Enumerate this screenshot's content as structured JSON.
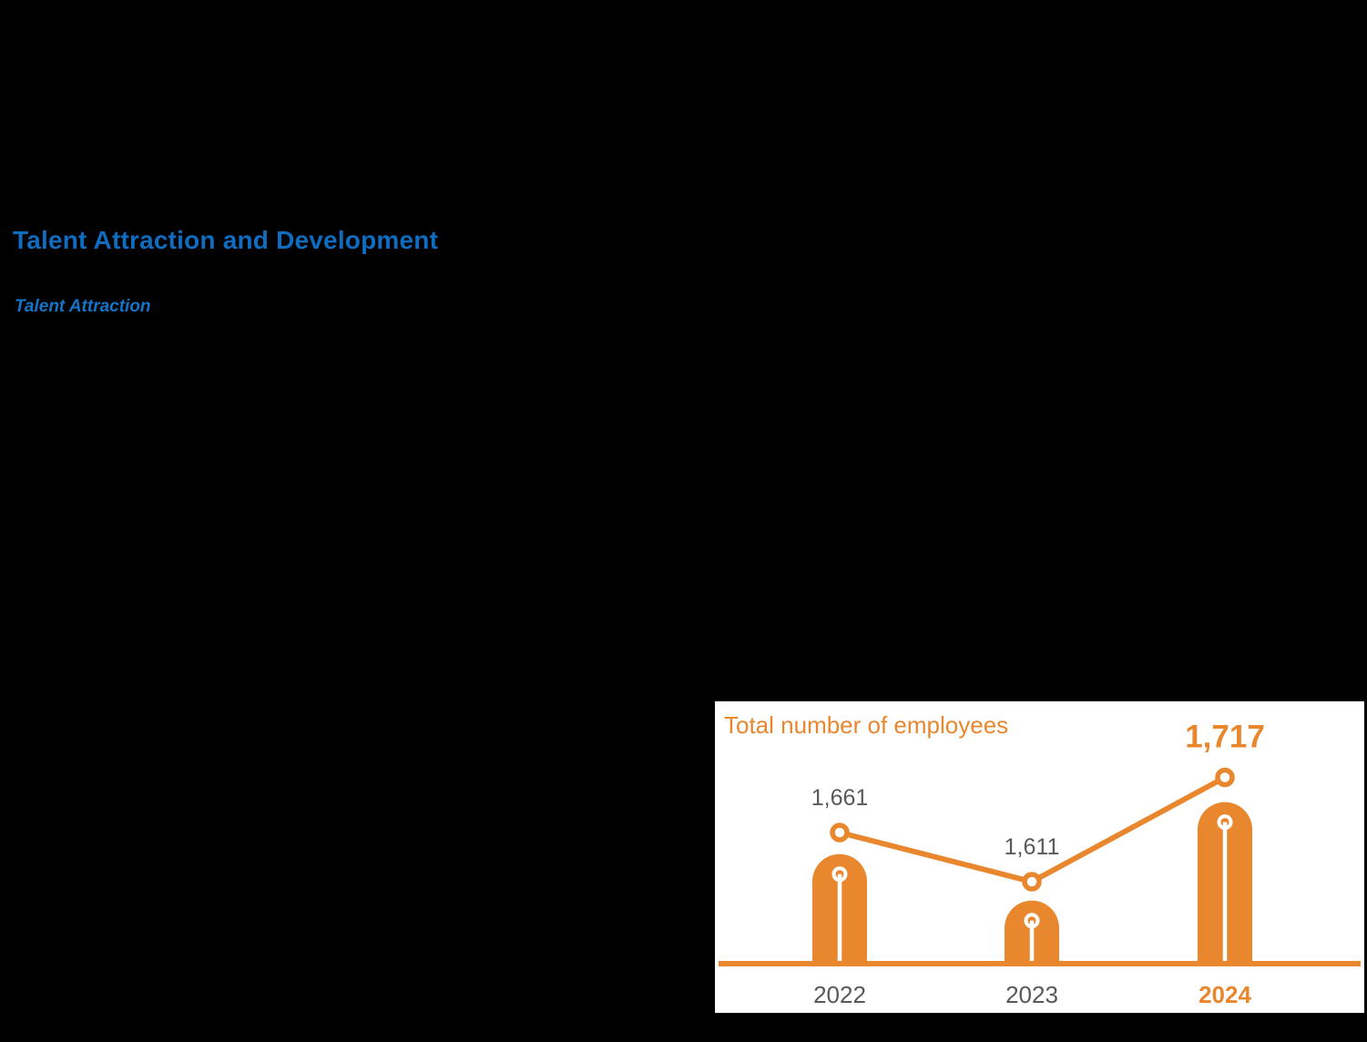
{
  "page": {
    "heading": "Talent Attraction and Development",
    "subheading": "Talent Attraction",
    "heading_color": "#0F6CBF",
    "subheading_color": "#1573C8",
    "background_color": "#000000"
  },
  "chart_data": {
    "type": "bar",
    "title": "Total number of employees",
    "categories": [
      "2022",
      "2023",
      "2024"
    ],
    "values": [
      1661,
      1611,
      1717
    ],
    "value_labels": [
      "1,661",
      "1,611",
      "1,717"
    ],
    "series": [
      {
        "name": "Total number of employees",
        "values": [
          1661,
          1611,
          1717
        ]
      }
    ],
    "highlight_category": "2024",
    "xlabel": "",
    "ylabel": "",
    "grid": false,
    "legend_position": "none",
    "y_axis_visible": false,
    "layout_hint": "rounded-top lollipop bars with overlaid line-and-marker series, baseline axis only",
    "colors": {
      "accent_orange": "#E8872E",
      "bar_orange": "#E8872E",
      "label_gray": "#58595B",
      "panel_background": "#FFFFFF"
    }
  }
}
